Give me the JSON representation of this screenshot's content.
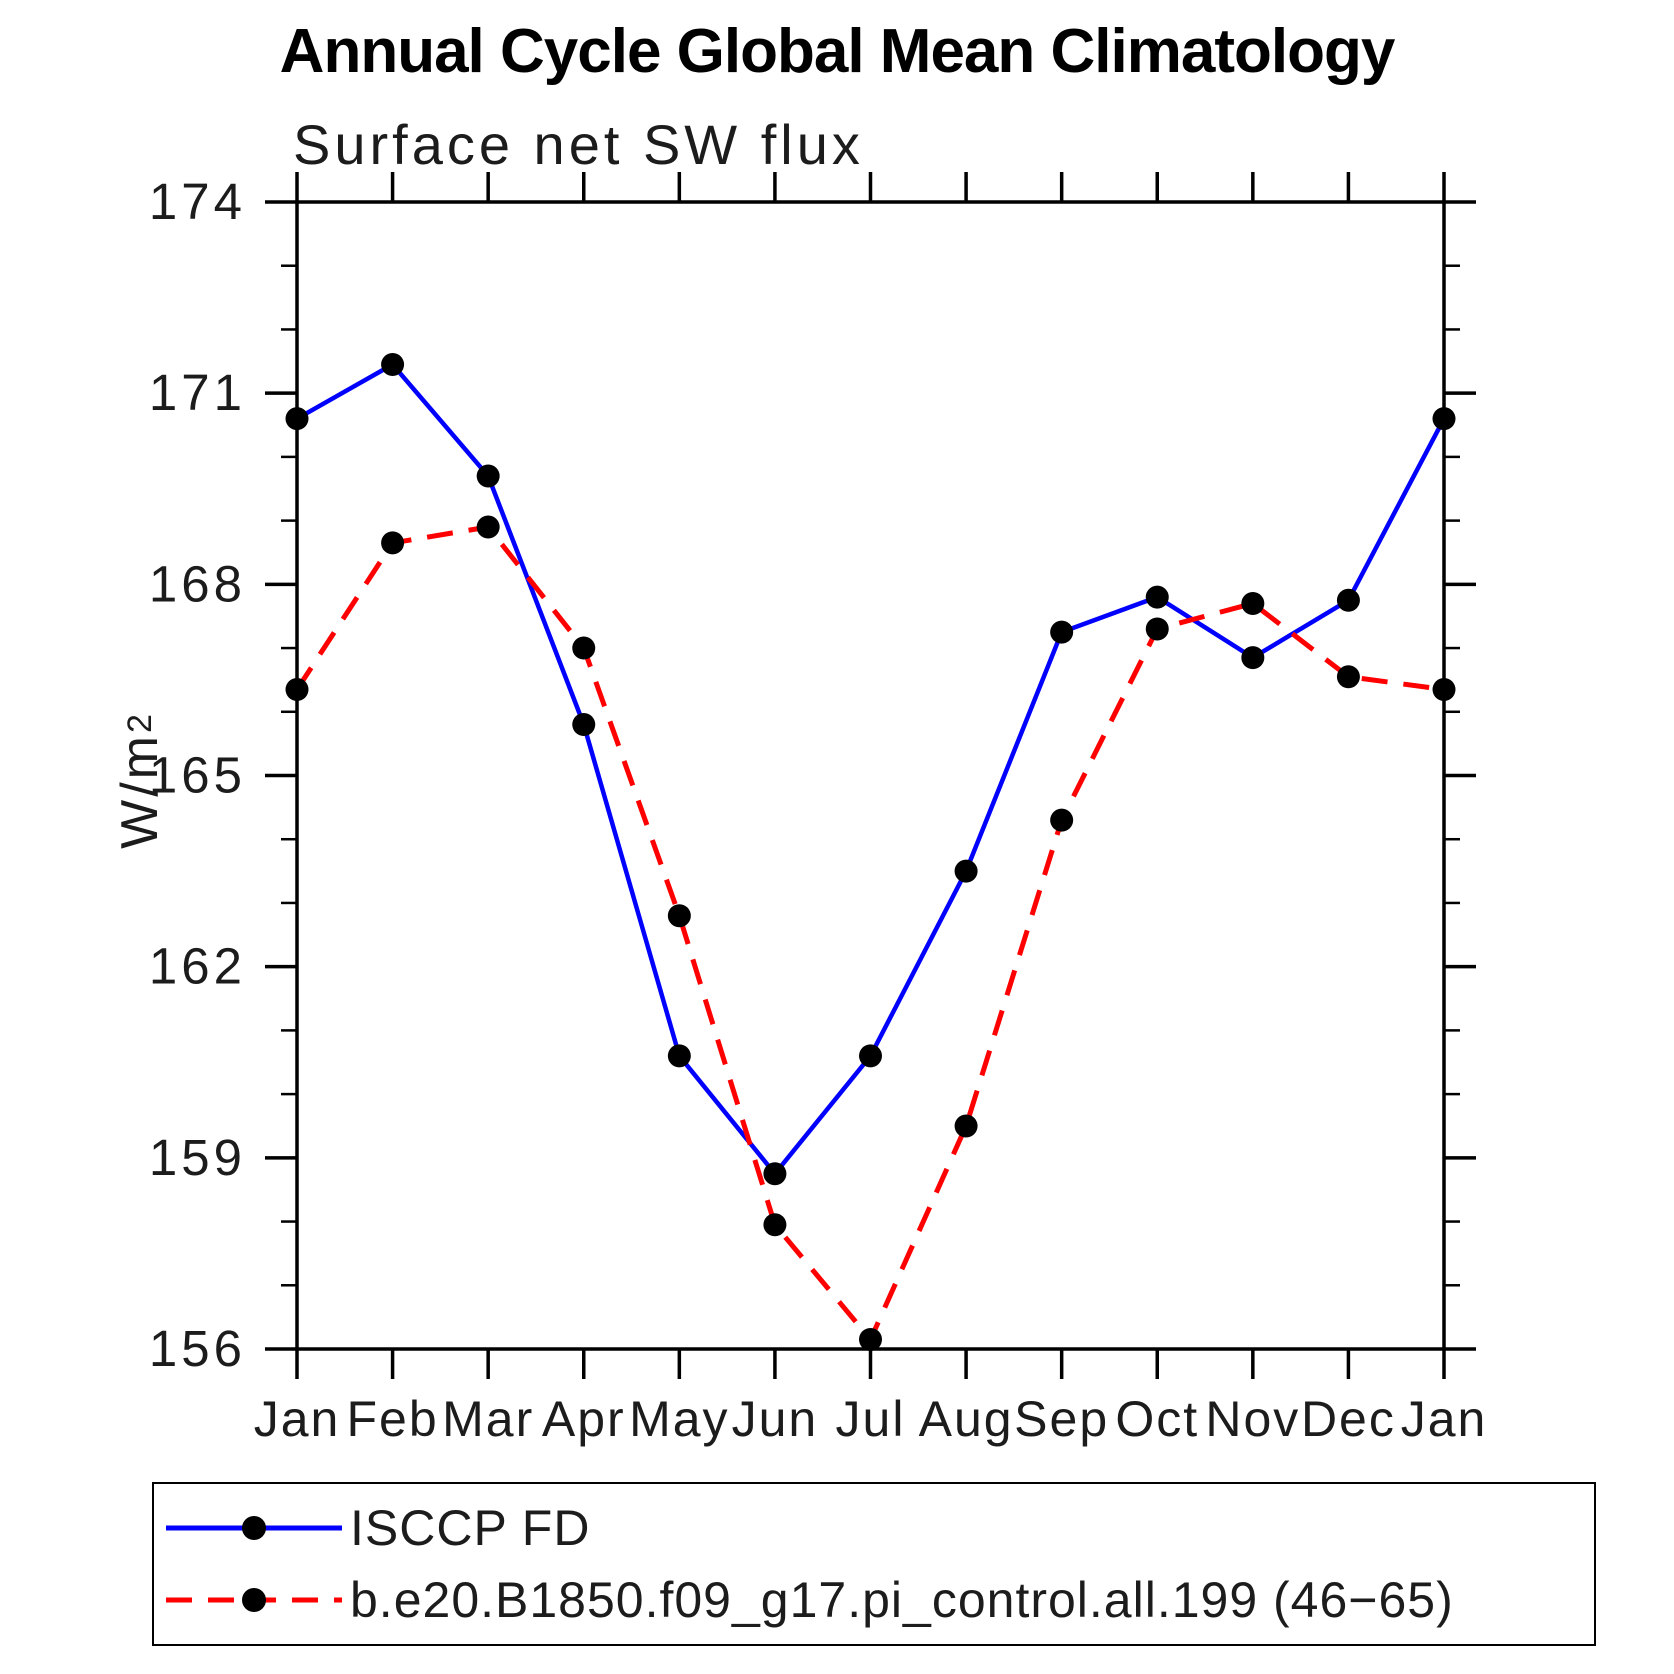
{
  "title": "Annual Cycle Global Mean Climatology",
  "chart_data": {
    "type": "line",
    "title": "Surface net SW flux",
    "ylabel_base": "W/m",
    "ylabel_sup": "2",
    "ylabel": "W/m²",
    "categories": [
      "Jan",
      "Feb",
      "Mar",
      "Apr",
      "May",
      "Jun",
      "Jul",
      "Aug",
      "Sep",
      "Oct",
      "Nov",
      "Dec",
      "Jan"
    ],
    "ylim": [
      156,
      174
    ],
    "yticks": [
      156,
      159,
      162,
      165,
      168,
      171,
      174
    ],
    "minor_tick_step": 1,
    "grid": false,
    "legend_position": "bottom",
    "marker_color": "#000000",
    "axis_color": "#000000",
    "series": [
      {
        "name": "ISCCP FD",
        "color": "#0000ff",
        "line_style": "solid",
        "values": [
          170.6,
          171.45,
          169.7,
          165.8,
          160.6,
          158.75,
          160.6,
          163.5,
          167.25,
          167.8,
          166.85,
          167.75,
          170.6
        ]
      },
      {
        "name": "b.e20.B1850.f09_g17.pi_control.all.199 (46−65)",
        "color": "#ff0000",
        "line_style": "dashed",
        "values": [
          166.35,
          168.65,
          168.9,
          167.0,
          162.8,
          157.95,
          156.15,
          159.5,
          164.3,
          167.3,
          167.7,
          166.55,
          166.35
        ]
      }
    ]
  }
}
